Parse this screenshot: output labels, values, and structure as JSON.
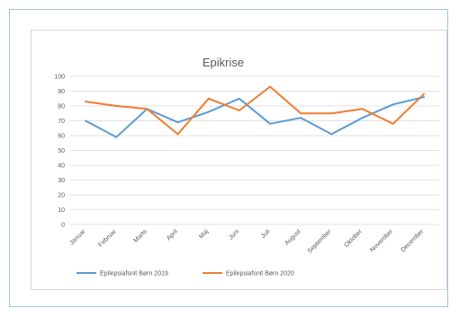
{
  "chart_data": {
    "type": "line",
    "title": "Epikrise",
    "xlabel": "",
    "ylabel": "",
    "categories": [
      "Januar",
      "Februar",
      "Marts",
      "April",
      "Maj",
      "Juni",
      "Juli",
      "August",
      "September",
      "Oktober",
      "November",
      "December"
    ],
    "ylim": [
      0,
      100
    ],
    "yticks": [
      0,
      10,
      20,
      30,
      40,
      50,
      60,
      70,
      80,
      90,
      100
    ],
    "grid": true,
    "legend_position": "bottom",
    "series": [
      {
        "name": "Epilepsiafsnit Børn 2019",
        "color": "#5b9bd5",
        "values": [
          70,
          59,
          78,
          69,
          76,
          85,
          68,
          72,
          61,
          72,
          81,
          86
        ]
      },
      {
        "name": "Epilepsiafsnit Børn 2020",
        "color": "#ed7d31",
        "values": [
          83,
          80,
          78,
          61,
          85,
          77,
          93,
          75,
          75,
          78,
          68,
          88
        ]
      }
    ]
  }
}
